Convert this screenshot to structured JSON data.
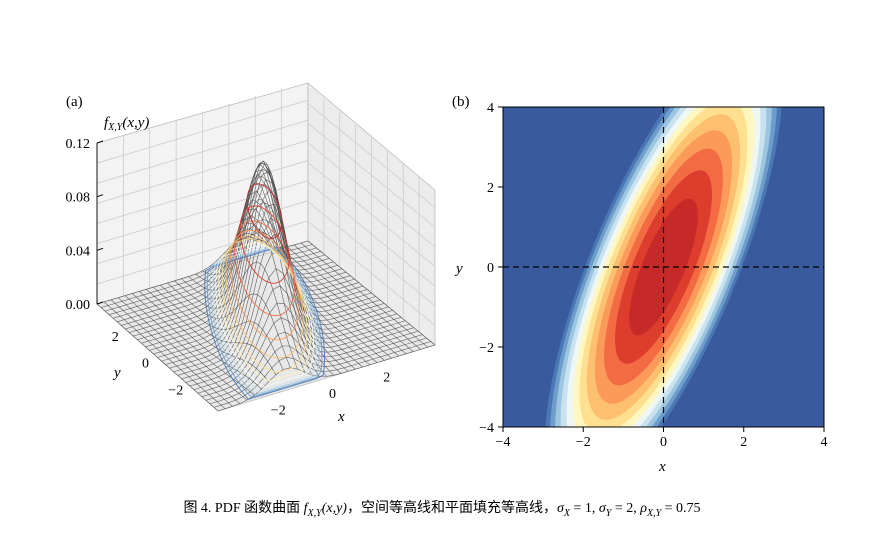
{
  "chart_data": [
    {
      "type": "surface",
      "panel_label": "(a)",
      "zlabel": "f",
      "zlabel_sub": "X,Y",
      "zlabel_args": "(x,y)",
      "xlabel": "x",
      "ylabel": "y",
      "zticks": [
        "0.00",
        "0.04",
        "0.08",
        "0.12"
      ],
      "zlim": [
        0,
        0.12
      ],
      "xticks": [
        "−2",
        "0",
        "2"
      ],
      "yticks": [
        "2",
        "0",
        "−2"
      ],
      "xlim": [
        -4,
        4
      ],
      "ylim": [
        -4,
        4
      ],
      "grid": true,
      "distribution": {
        "sigma_x": 1,
        "sigma_y": 2,
        "rho": 0.75,
        "mu_x": 0,
        "mu_y": 0
      }
    },
    {
      "type": "filled_contour",
      "panel_label": "(b)",
      "xlabel": "x",
      "ylabel": "y",
      "xticks": [
        "−4",
        "−2",
        "0",
        "2",
        "4"
      ],
      "yticks": [
        "4",
        "2",
        "0",
        "−2",
        "−4"
      ],
      "xlim": [
        -4,
        4
      ],
      "ylim": [
        -4,
        4
      ],
      "levels": 14,
      "colormap": [
        "#3a5a9e",
        "#4a78b4",
        "#6e9ccb",
        "#9cc5e0",
        "#c8e3ef",
        "#eef7f4",
        "#fff6c0",
        "#fee090",
        "#fdc070",
        "#fb9a59",
        "#f26b43",
        "#dd3d2d",
        "#c62a28"
      ],
      "reference_lines": [
        "x = 0",
        "y = 0"
      ]
    }
  ],
  "caption": {
    "prefix": "图 4. PDF 函数曲面 ",
    "f": "f",
    "f_sub": "X,Y",
    "f_args": "(x,y)",
    "middle": "，空间等高线和平面填充等高线，",
    "sx": "σ",
    "sx_sub": "X",
    "sx_val": " = 1, ",
    "sy": "σ",
    "sy_sub": "Y",
    "sy_val": " = 2, ",
    "rho": "ρ",
    "rho_sub": "X,Y",
    "rho_val": " = 0.75"
  }
}
